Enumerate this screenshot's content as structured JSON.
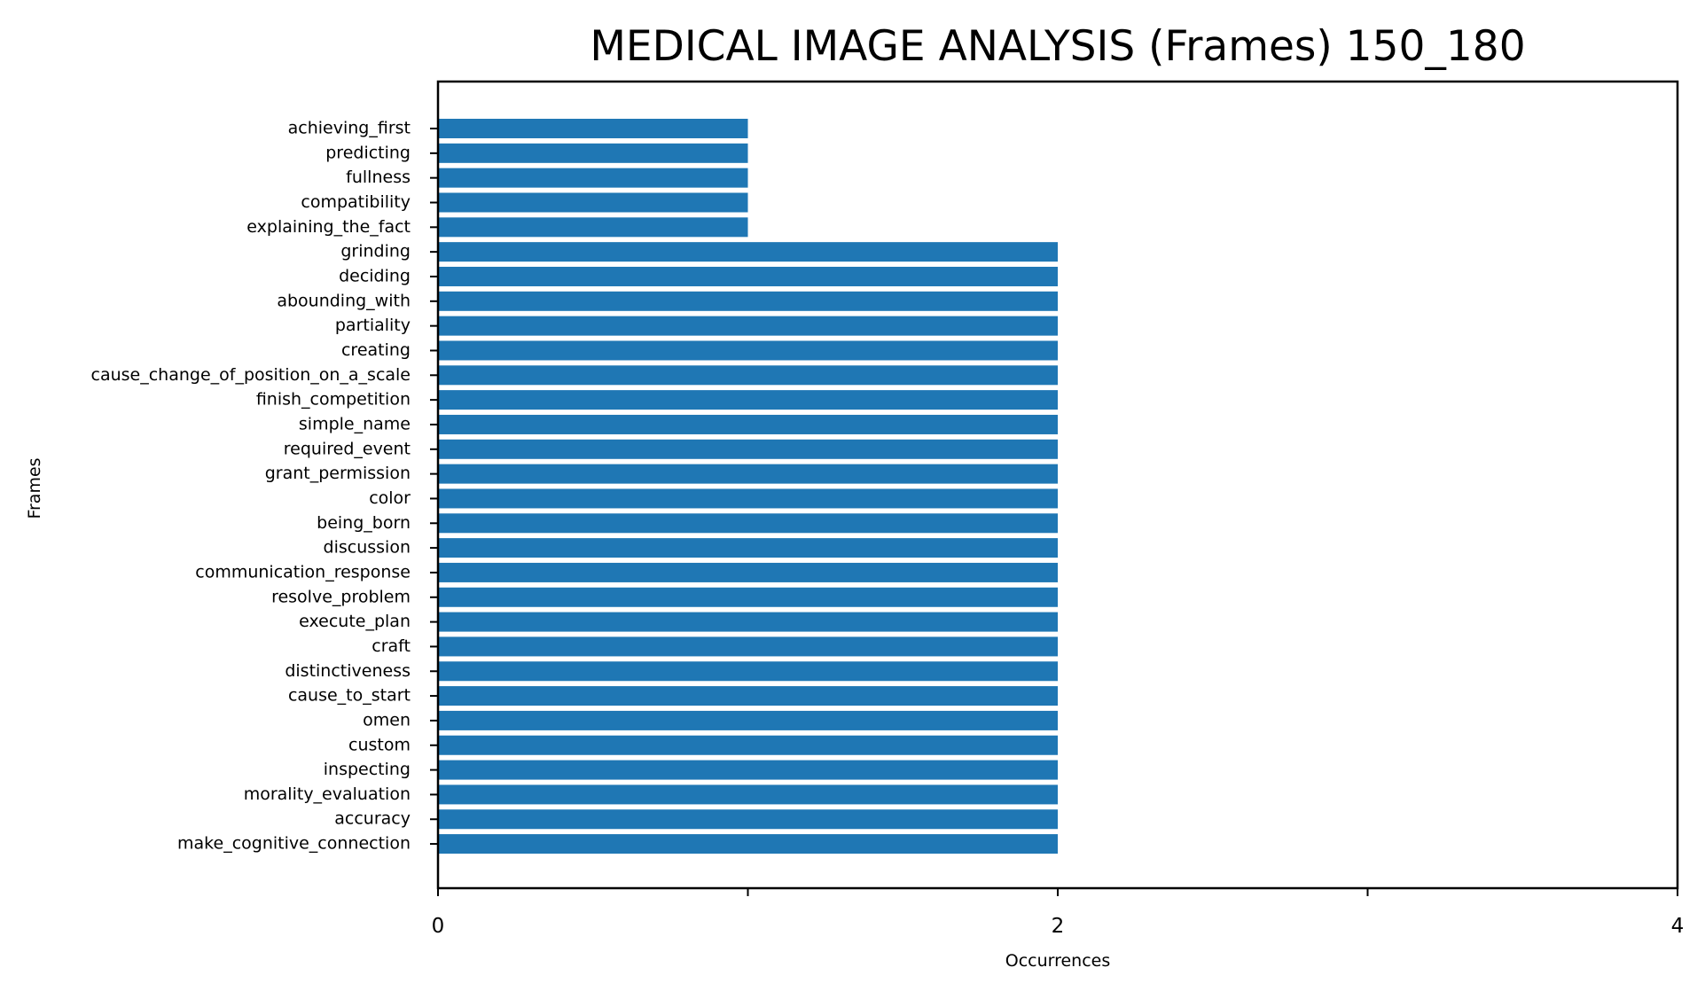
{
  "chart_data": {
    "type": "bar",
    "orientation": "horizontal",
    "title": "MEDICAL IMAGE ANALYSIS (Frames) 150_180",
    "xlabel": "Occurrences",
    "ylabel": "Frames",
    "xlim": [
      0,
      4
    ],
    "xticks": [
      0,
      1,
      2,
      3,
      4
    ],
    "xtick_labels": [
      "0",
      "",
      "2",
      "",
      "4"
    ],
    "grid": false,
    "bar_color": "#1f77b4",
    "categories": [
      "achieving_first",
      "predicting",
      "fullness",
      "compatibility",
      "explaining_the_fact",
      "grinding",
      "deciding",
      "abounding_with",
      "partiality",
      "creating",
      "cause_change_of_position_on_a_scale",
      "finish_competition",
      "simple_name",
      "required_event",
      "grant_permission",
      "color",
      "being_born",
      "discussion",
      "communication_response",
      "resolve_problem",
      "execute_plan",
      "craft",
      "distinctiveness",
      "cause_to_start",
      "omen",
      "custom",
      "inspecting",
      "morality_evaluation",
      "accuracy",
      "make_cognitive_connection"
    ],
    "values": [
      1,
      1,
      1,
      1,
      1,
      2,
      2,
      2,
      2,
      2,
      2,
      2,
      2,
      2,
      2,
      2,
      2,
      2,
      2,
      2,
      2,
      2,
      2,
      2,
      2,
      2,
      2,
      2,
      2,
      2
    ]
  }
}
